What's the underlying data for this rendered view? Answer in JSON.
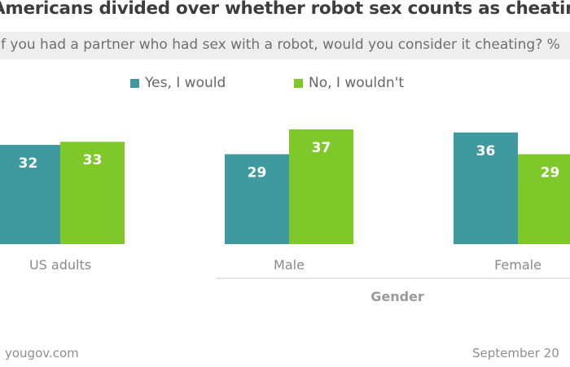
{
  "chart_data": {
    "type": "bar",
    "title": "Americans divided over whether robot sex counts as cheating",
    "subtitle": "If you had a partner who had sex with a robot, would you consider it cheating? %",
    "categories": [
      "US adults",
      "Male",
      "Female"
    ],
    "group_label": "Gender",
    "series": [
      {
        "name": "Yes, I would",
        "color": "#3f9aa0",
        "values": [
          32,
          29,
          36
        ]
      },
      {
        "name": "No, I wouldn't",
        "color": "#7ec82a",
        "values": [
          33,
          37,
          29
        ]
      }
    ],
    "ylim": [
      0,
      40
    ],
    "grid": false,
    "legend_position": "top"
  },
  "source": "yougov.com",
  "date": "September 20"
}
